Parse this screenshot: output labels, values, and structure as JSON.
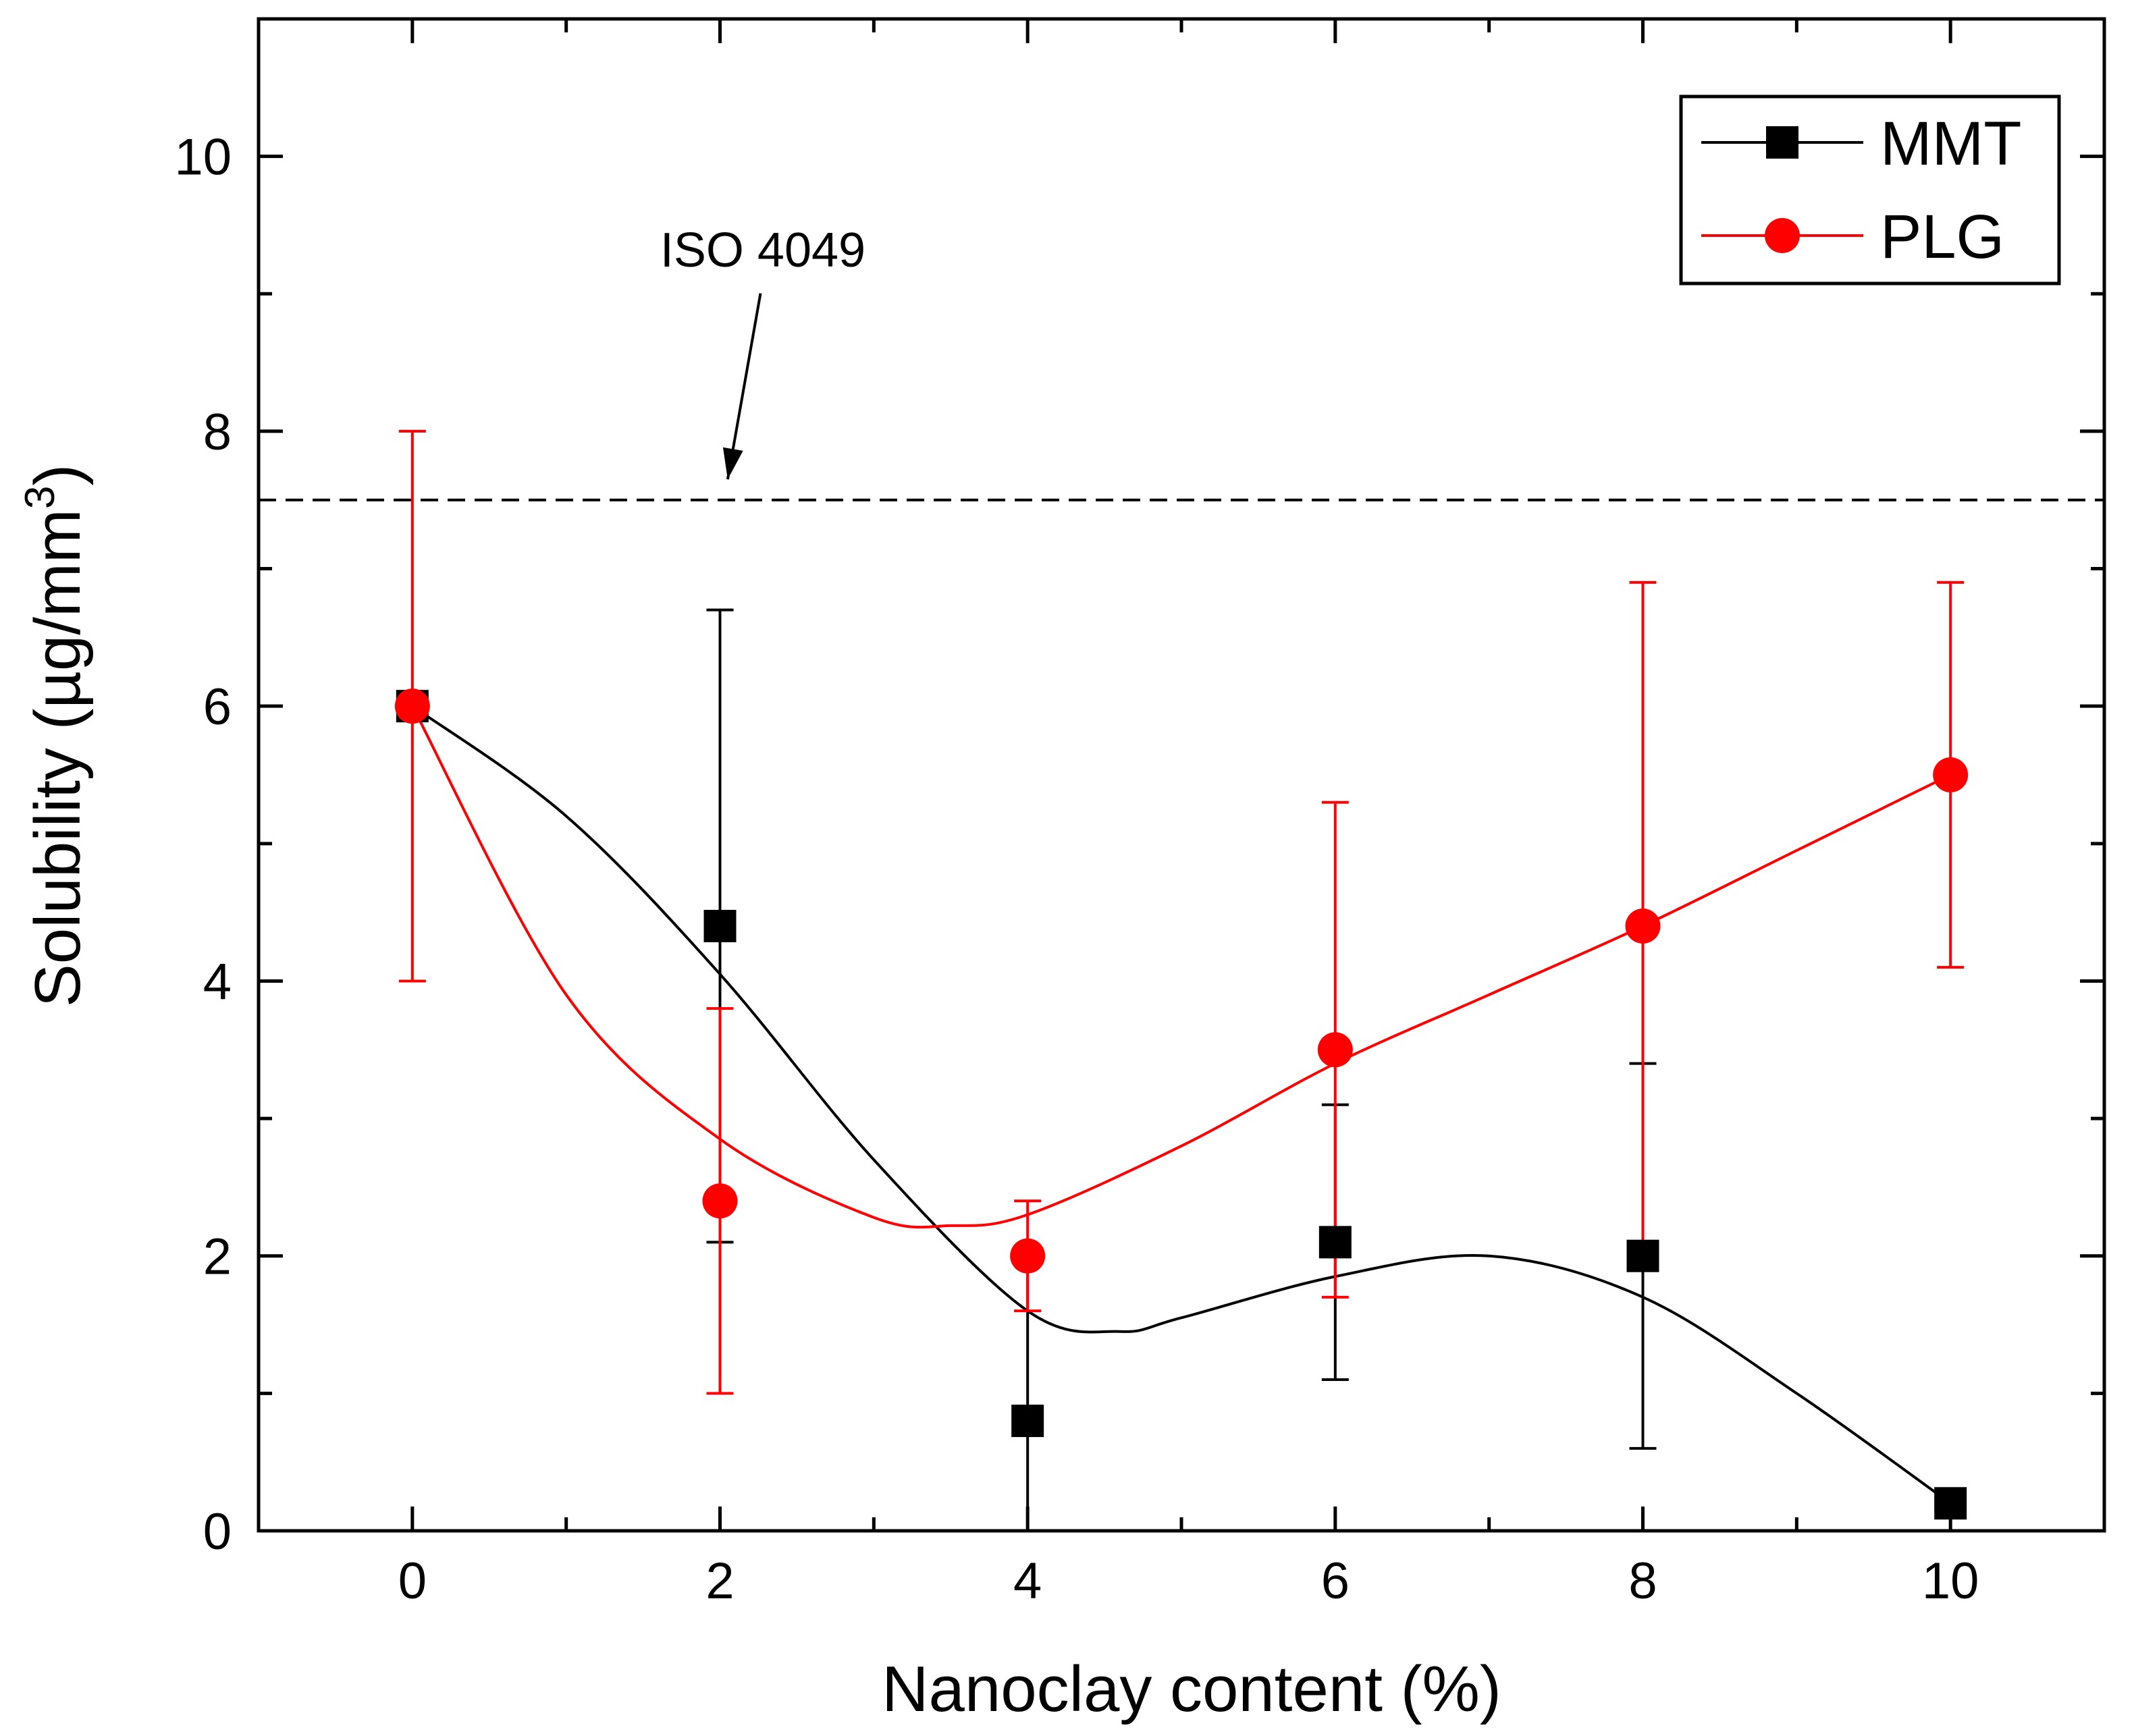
{
  "chart_data": {
    "type": "scatter",
    "title": "",
    "xlabel": "Nanoclay content (%)",
    "ylabel_main": "Solubility (µg/mm",
    "ylabel_sup": "3",
    "ylabel_close": ")",
    "xlim": [
      -1,
      11
    ],
    "ylim": [
      0,
      11
    ],
    "x_ticks": [
      0,
      2,
      4,
      6,
      8,
      10
    ],
    "x_tick_labels": [
      "0",
      "2",
      "4",
      "6",
      "8",
      "10"
    ],
    "y_ticks": [
      0,
      2,
      4,
      6,
      8,
      10
    ],
    "y_tick_labels": [
      "0",
      "2",
      "4",
      "6",
      "8",
      "10"
    ],
    "legend_position": "top-right",
    "series": [
      {
        "name": "MMT",
        "color": "#000000",
        "marker": "square",
        "x": [
          0,
          2,
          4,
          6,
          8,
          10
        ],
        "y": [
          6.0,
          4.4,
          0.8,
          2.1,
          2.0,
          0.2
        ],
        "err_low": [
          6.0,
          2.1,
          0.0,
          1.1,
          0.6,
          0.2
        ],
        "err_high": [
          6.0,
          6.7,
          2.0,
          3.1,
          3.4,
          0.2
        ],
        "fit_curve": [
          [
            0,
            6.0
          ],
          [
            1,
            5.2
          ],
          [
            2,
            4.05
          ],
          [
            3,
            2.7
          ],
          [
            4,
            1.6
          ],
          [
            4.6,
            1.45
          ],
          [
            5,
            1.55
          ],
          [
            6,
            1.85
          ],
          [
            7,
            2.0
          ],
          [
            8,
            1.7
          ],
          [
            9,
            1.0
          ],
          [
            10,
            0.2
          ]
        ]
      },
      {
        "name": "PLG",
        "color": "#ff0000",
        "marker": "circle",
        "x": [
          0,
          2,
          4,
          6,
          8,
          10
        ],
        "y": [
          6.0,
          2.4,
          2.0,
          3.5,
          4.4,
          5.5
        ],
        "err_low": [
          4.0,
          1.0,
          1.6,
          1.7,
          2.0,
          4.1
        ],
        "err_high": [
          8.0,
          3.8,
          2.4,
          5.3,
          6.9,
          6.9
        ],
        "fit_curve": [
          [
            0,
            6.0
          ],
          [
            1,
            3.9
          ],
          [
            2,
            2.85
          ],
          [
            3,
            2.28
          ],
          [
            3.5,
            2.22
          ],
          [
            4,
            2.3
          ],
          [
            5,
            2.8
          ],
          [
            6,
            3.4
          ],
          [
            7,
            3.9
          ],
          [
            8,
            4.4
          ],
          [
            9,
            4.95
          ],
          [
            10,
            5.5
          ]
        ]
      }
    ],
    "reference_line": {
      "y": 7.5,
      "style": "dashed",
      "color": "#000000"
    },
    "annotation": {
      "text": "ISO 4049",
      "text_x": 2.0,
      "text_y": 9.2,
      "arrow_to_x": 2.05,
      "arrow_to_y": 7.65
    }
  }
}
